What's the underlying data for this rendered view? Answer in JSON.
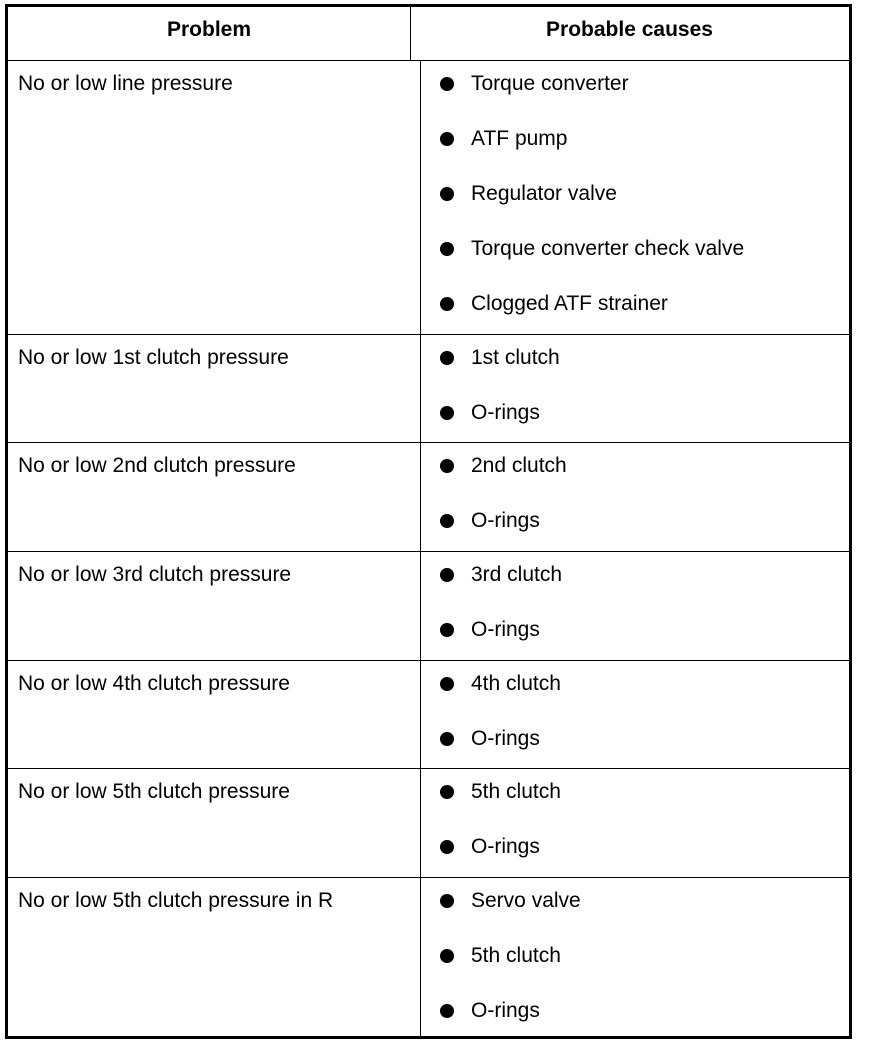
{
  "table": {
    "headers": [
      "Problem",
      "Probable causes"
    ],
    "rows": [
      {
        "problem": "No or low line pressure",
        "causes": [
          "Torque converter",
          "ATF pump",
          "Regulator valve",
          "Torque converter check valve",
          "Clogged ATF strainer"
        ]
      },
      {
        "problem": "No or low 1st clutch pressure",
        "causes": [
          "1st clutch",
          "O-rings"
        ]
      },
      {
        "problem": "No or low 2nd clutch pressure",
        "causes": [
          "2nd clutch",
          "O-rings"
        ]
      },
      {
        "problem": "No or low 3rd clutch pressure",
        "causes": [
          "3rd clutch",
          "O-rings"
        ]
      },
      {
        "problem": "No or low 4th clutch pressure",
        "causes": [
          "4th clutch",
          "O-rings"
        ]
      },
      {
        "problem": "No or low 5th clutch pressure",
        "causes": [
          "5th clutch",
          "O-rings"
        ]
      },
      {
        "problem": "No or low 5th clutch pressure in R",
        "causes": [
          "Servo valve",
          "5th clutch",
          "O-rings"
        ]
      }
    ]
  }
}
